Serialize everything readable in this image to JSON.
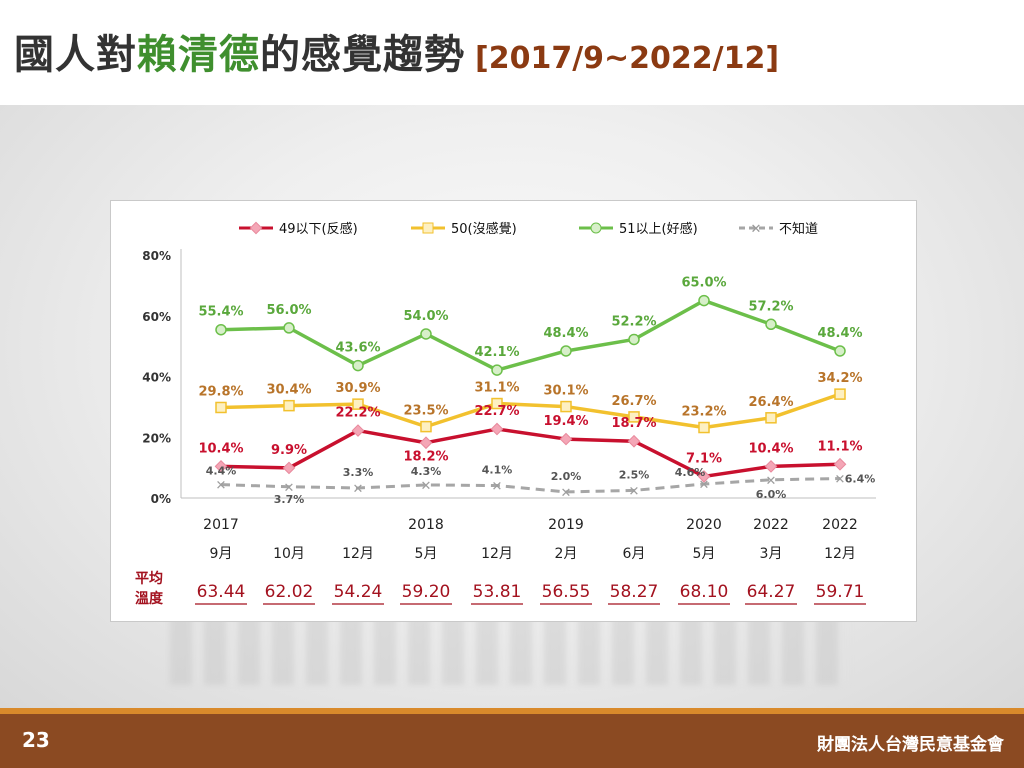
{
  "title": {
    "prefix": "國人對",
    "highlight": "賴清德",
    "suffix": "的感覺趨勢",
    "range": "[2017/9~2022/12]"
  },
  "footer": {
    "page_number": "23",
    "organization": "財團法人台灣民意基金會"
  },
  "avg_label": [
    "平均",
    "溫度"
  ],
  "colors": {
    "red": "#c8102e",
    "yellow": "#f2c12e",
    "green": "#6cbf4a",
    "gray": "#a6a6a6",
    "avg": "#a3121f"
  },
  "chart_data": {
    "type": "line",
    "ylim": [
      0,
      80
    ],
    "yticks": [
      "0%",
      "20%",
      "40%",
      "60%",
      "80%"
    ],
    "ytick_values": [
      0,
      20,
      40,
      60,
      80
    ],
    "grid": false,
    "legend_position": "top",
    "x_years": [
      "2017",
      "",
      "",
      "2018",
      "",
      "2019",
      "",
      "2020",
      "2022",
      "2022"
    ],
    "x_months": [
      "9月",
      "10月",
      "12月",
      "5月",
      "12月",
      "2月",
      "6月",
      "5月",
      "3月",
      "12月"
    ],
    "series": [
      {
        "name": "49以下(反感)",
        "color": "#c8102e",
        "values": [
          10.4,
          9.9,
          22.2,
          18.2,
          22.7,
          19.4,
          18.7,
          7.1,
          10.4,
          11.1
        ],
        "labels": [
          "10.4%",
          "9.9%",
          "22.2%",
          "18.2%",
          "22.7%",
          "19.4%",
          "18.7%",
          "7.1%",
          "10.4%",
          "11.1%"
        ]
      },
      {
        "name": "50(沒感覺)",
        "color": "#f2c12e",
        "values": [
          29.8,
          30.4,
          30.9,
          23.5,
          31.1,
          30.1,
          26.7,
          23.2,
          26.4,
          34.2
        ],
        "labels": [
          "29.8%",
          "30.4%",
          "30.9%",
          "23.5%",
          "31.1%",
          "30.1%",
          "26.7%",
          "23.2%",
          "26.4%",
          "34.2%"
        ]
      },
      {
        "name": "51以上(好感)",
        "color": "#6cbf4a",
        "values": [
          55.4,
          56.0,
          43.6,
          54.0,
          42.1,
          48.4,
          52.2,
          65.0,
          57.2,
          48.4
        ],
        "labels": [
          "55.4%",
          "56.0%",
          "43.6%",
          "54.0%",
          "42.1%",
          "48.4%",
          "52.2%",
          "65.0%",
          "57.2%",
          "48.4%"
        ]
      },
      {
        "name": "不知道",
        "color": "#a6a6a6",
        "values": [
          4.4,
          3.7,
          3.3,
          4.3,
          4.1,
          2.0,
          2.5,
          4.6,
          6.0,
          6.4
        ],
        "labels": [
          "4.4%",
          "3.7%",
          "3.3%",
          "4.3%",
          "4.1%",
          "2.0%",
          "2.5%",
          "4.6%",
          "6.0%",
          "6.4%"
        ]
      }
    ],
    "avg_temperature": [
      "63.44",
      "62.02",
      "54.24",
      "59.20",
      "53.81",
      "56.55",
      "58.27",
      "68.10",
      "64.27",
      "59.71"
    ]
  }
}
